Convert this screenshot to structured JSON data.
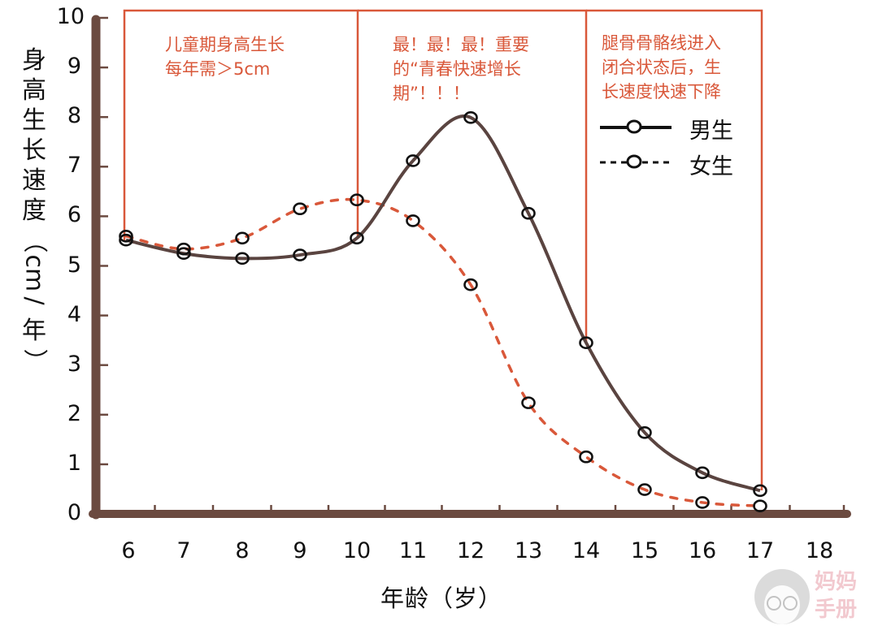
{
  "chart_data": {
    "type": "line",
    "title": "",
    "xlabel": "年龄（岁）",
    "ylabel": "身高生长速度（cm/年）",
    "x": [
      6,
      7,
      8,
      9,
      10,
      11,
      12,
      13,
      14,
      15,
      16,
      17
    ],
    "x_ticks": [
      "6",
      "7",
      "8",
      "9",
      "10",
      "11",
      "12",
      "13",
      "14",
      "15",
      "16",
      "17",
      "18"
    ],
    "y_ticks": [
      "0",
      "1",
      "2",
      "3",
      "4",
      "5",
      "6",
      "7",
      "8",
      "9",
      "10"
    ],
    "xlim": [
      6,
      18
    ],
    "ylim": [
      0,
      10
    ],
    "grid": false,
    "legend_position": "upper right",
    "series": [
      {
        "name": "男生",
        "style": "solid",
        "marker": "circle",
        "values": [
          5.52,
          5.25,
          5.15,
          5.22,
          5.56,
          7.12,
          7.99,
          6.06,
          3.45,
          1.64,
          0.83,
          0.47
        ]
      },
      {
        "name": "女生",
        "style": "dashed",
        "marker": "circle",
        "values": [
          5.6,
          5.34,
          5.56,
          6.15,
          6.33,
          5.91,
          4.62,
          2.24,
          1.15,
          0.49,
          0.23,
          0.16
        ]
      }
    ],
    "annotations": [
      {
        "range": [
          6,
          10
        ],
        "text": [
          "儿童期身高生长",
          "每年需＞5cm"
        ]
      },
      {
        "range": [
          10,
          14
        ],
        "text": [
          "最！最！最！重要",
          "的“青春快速增长",
          "期”！！！"
        ]
      },
      {
        "range": [
          14,
          17
        ],
        "text": [
          "腿骨骨骼线进入",
          "闭合状态后，生",
          "长速度快速下降"
        ]
      }
    ]
  },
  "colors": {
    "axis": "#6b4a40",
    "boys_line": "#5a4440",
    "girls_line": "#d9583a",
    "region_box": "#d9583a",
    "annotation_text": "#d9583a",
    "marker": "#111111"
  },
  "labels": {
    "ylabel_chars": [
      "身",
      "高",
      "生",
      "长",
      "速",
      "度",
      "（",
      "cm",
      "/",
      "年",
      "）"
    ],
    "xlabel": "年龄（岁）",
    "legend": {
      "boys": "男生",
      "girls": "女生"
    },
    "anno1": [
      "儿童期身高生长",
      "每年需＞5cm"
    ],
    "anno2": [
      "最！最！最！重要",
      "的“青春快速增长",
      "期”！！！"
    ],
    "anno3": [
      "腿骨骨骼线进入",
      "闭合状态后，生",
      "长速度快速下降"
    ],
    "watermark": [
      "妈妈",
      "手册"
    ]
  }
}
